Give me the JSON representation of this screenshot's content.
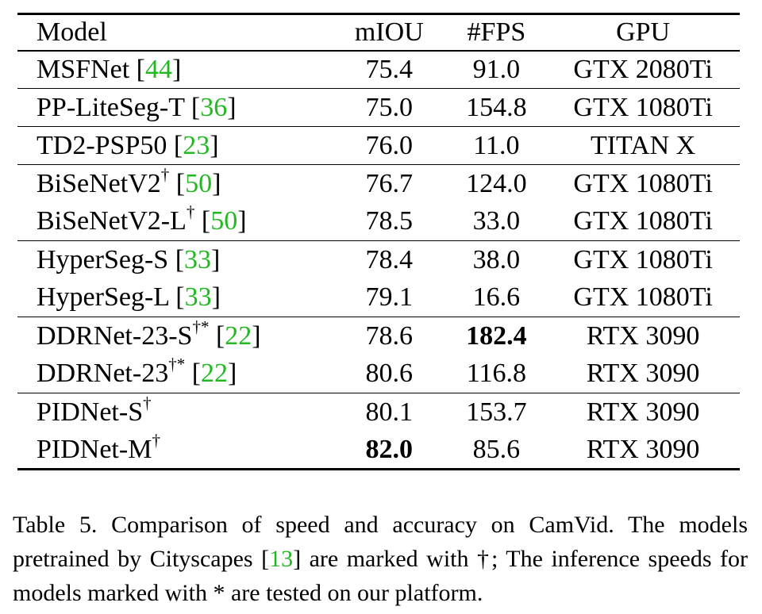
{
  "table": {
    "headers": {
      "model": "Model",
      "miou": "mIOU",
      "fps": "#FPS",
      "gpu": "GPU"
    },
    "rows": [
      {
        "name": "MSFNet",
        "sup": "",
        "cite_open": " [",
        "cite": "44",
        "cite_close": "]",
        "miou": "75.4",
        "fps": "91.0",
        "gpu": "GTX 2080Ti",
        "bold_miou": false,
        "bold_fps": false,
        "group_start": true
      },
      {
        "name": "PP-LiteSeg-T",
        "sup": "",
        "cite_open": " [",
        "cite": "36",
        "cite_close": "]",
        "miou": "75.0",
        "fps": "154.8",
        "gpu": "GTX 1080Ti",
        "bold_miou": false,
        "bold_fps": false,
        "group_start": true
      },
      {
        "name": "TD2-PSP50",
        "sup": "",
        "cite_open": " [",
        "cite": "23",
        "cite_close": "]",
        "miou": "76.0",
        "fps": "11.0",
        "gpu": "TITAN X",
        "bold_miou": false,
        "bold_fps": false,
        "group_start": true
      },
      {
        "name": "BiSeNetV2",
        "sup": "†",
        "cite_open": " [",
        "cite": "50",
        "cite_close": "]",
        "miou": "76.7",
        "fps": "124.0",
        "gpu": "GTX 1080Ti",
        "bold_miou": false,
        "bold_fps": false,
        "group_start": true
      },
      {
        "name": "BiSeNetV2-L",
        "sup": "†",
        "cite_open": " [",
        "cite": "50",
        "cite_close": "]",
        "miou": "78.5",
        "fps": "33.0",
        "gpu": "GTX 1080Ti",
        "bold_miou": false,
        "bold_fps": false,
        "group_start": false
      },
      {
        "name": "HyperSeg-S",
        "sup": "",
        "cite_open": " [",
        "cite": "33",
        "cite_close": "]",
        "miou": "78.4",
        "fps": "38.0",
        "gpu": "GTX 1080Ti",
        "bold_miou": false,
        "bold_fps": false,
        "group_start": true
      },
      {
        "name": "HyperSeg-L",
        "sup": "",
        "cite_open": " [",
        "cite": "33",
        "cite_close": "]",
        "miou": "79.1",
        "fps": "16.6",
        "gpu": "GTX 1080Ti",
        "bold_miou": false,
        "bold_fps": false,
        "group_start": false
      },
      {
        "name": "DDRNet-23-S",
        "sup": "†*",
        "cite_open": " [",
        "cite": "22",
        "cite_close": "]",
        "miou": "78.6",
        "fps": "182.4",
        "gpu": "RTX 3090",
        "bold_miou": false,
        "bold_fps": true,
        "group_start": true
      },
      {
        "name": "DDRNet-23",
        "sup": "†*",
        "cite_open": " [",
        "cite": "22",
        "cite_close": "]",
        "miou": "80.6",
        "fps": "116.8",
        "gpu": "RTX 3090",
        "bold_miou": false,
        "bold_fps": false,
        "group_start": false
      },
      {
        "name": "PIDNet-S",
        "sup": "†",
        "cite_open": "",
        "cite": "",
        "cite_close": "",
        "miou": "80.1",
        "fps": "153.7",
        "gpu": "RTX 3090",
        "bold_miou": false,
        "bold_fps": false,
        "group_start": true
      },
      {
        "name": "PIDNet-M",
        "sup": "†",
        "cite_open": "",
        "cite": "",
        "cite_close": "",
        "miou": "82.0",
        "fps": "85.6",
        "gpu": "RTX 3090",
        "bold_miou": true,
        "bold_fps": false,
        "group_start": false
      }
    ]
  },
  "caption": {
    "part1": "Table 5. Comparison of speed and accuracy on CamVid. The models pretrained by Cityscapes [",
    "cite": "13",
    "part2": "] are marked with †; The inference speeds for models marked with * are tested on our platform."
  },
  "colors": {
    "citation": "#22b822",
    "text": "#000000",
    "background": "#ffffff"
  }
}
